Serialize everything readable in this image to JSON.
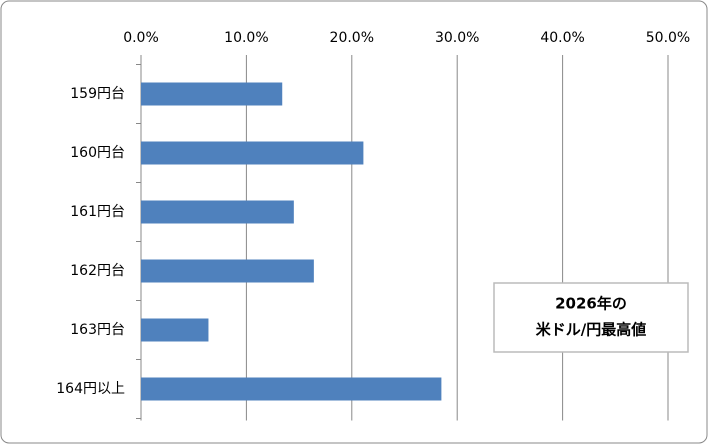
{
  "chart_data": {
    "type": "bar",
    "orientation": "horizontal",
    "annotation": [
      "2026年の",
      "米ドル/円最高値"
    ],
    "categories": [
      "159円台",
      "160円台",
      "161円台",
      "162円台",
      "163円台",
      "164円以上"
    ],
    "values": [
      13.4,
      21.1,
      14.5,
      16.4,
      6.4,
      28.5
    ],
    "color": "#4f81bd",
    "xlim": [
      0,
      50
    ],
    "xticks": [
      {
        "value": 0,
        "label": "0.0%"
      },
      {
        "value": 10,
        "label": "10.0%"
      },
      {
        "value": 20,
        "label": "20.0%"
      },
      {
        "value": 30,
        "label": "30.0%"
      },
      {
        "value": 40,
        "label": "40.0%"
      },
      {
        "value": 50,
        "label": "50.0%"
      }
    ],
    "grid": true
  }
}
